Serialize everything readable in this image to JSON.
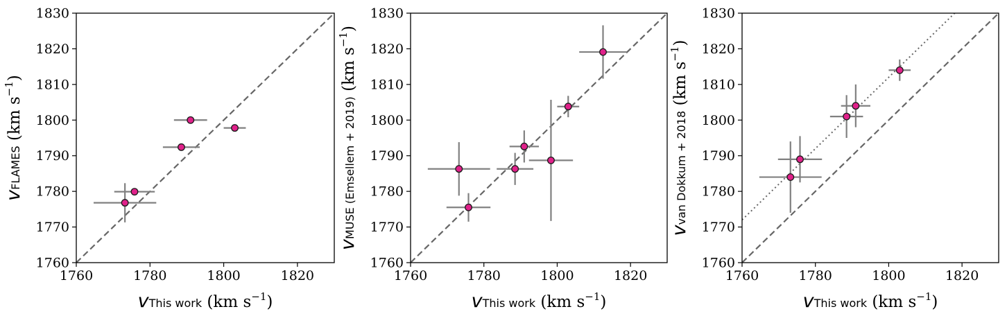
{
  "chart_data": [
    {
      "type": "scatter",
      "xlabel": {
        "symbol": "v",
        "subscript": "This work",
        "unit": "(km s",
        "exponent": "−1",
        "close": ")"
      },
      "ylabel": {
        "symbol": "v",
        "subscript": "FLAMES",
        "unit": "(km s",
        "exponent": "−1",
        "close": ")"
      },
      "xlim": [
        1760,
        1830
      ],
      "ylim": [
        1760,
        1830
      ],
      "xticks": [
        "1760",
        "1780",
        "1800",
        "1820"
      ],
      "yticks": [
        "1760",
        "1770",
        "1780",
        "1790",
        "1800",
        "1810",
        "1820",
        "1830"
      ],
      "reference_lines": [
        {
          "style": "dashed",
          "slope": 1,
          "intercept": 0
        }
      ],
      "series": [
        {
          "marker_color": "#e0218a",
          "points": [
            {
              "x": 1773.2,
              "y": 1776.8,
              "xerr": 8.5,
              "yerr": 5.5
            },
            {
              "x": 1775.8,
              "y": 1779.9,
              "xerr": 5.5,
              "yerr": 0
            },
            {
              "x": 1788.5,
              "y": 1792.4,
              "xerr": 5.0,
              "yerr": 0
            },
            {
              "x": 1791.0,
              "y": 1800.0,
              "xerr": 4.5,
              "yerr": 0
            },
            {
              "x": 1803.0,
              "y": 1797.8,
              "xerr": 3.0,
              "yerr": 0
            }
          ]
        }
      ]
    },
    {
      "type": "scatter",
      "xlabel": {
        "symbol": "v",
        "subscript": "This work",
        "unit": "(km s",
        "exponent": "−1",
        "close": ")"
      },
      "ylabel": {
        "symbol": "v",
        "subscript": "MUSE (Emsellem + 2019)",
        "unit": "(km s",
        "exponent": "−1",
        "close": ")"
      },
      "xlim": [
        1760,
        1830
      ],
      "ylim": [
        1760,
        1830
      ],
      "xticks": [
        "1760",
        "1780",
        "1800",
        "1820"
      ],
      "yticks": [
        "1760",
        "1770",
        "1780",
        "1790",
        "1800",
        "1810",
        "1820",
        "1830"
      ],
      "reference_lines": [
        {
          "style": "dashed",
          "slope": 1,
          "intercept": 0
        }
      ],
      "series": [
        {
          "marker_color": "#e0218a",
          "points": [
            {
              "x": 1773.2,
              "y": 1786.3,
              "xerr": 8.5,
              "yerr": 7.5
            },
            {
              "x": 1775.8,
              "y": 1775.5,
              "xerr": 6.0,
              "yerr": 4.0
            },
            {
              "x": 1788.5,
              "y": 1786.3,
              "xerr": 5.0,
              "yerr": 4.5
            },
            {
              "x": 1791.0,
              "y": 1792.6,
              "xerr": 4.0,
              "yerr": 4.5
            },
            {
              "x": 1798.3,
              "y": 1788.7,
              "xerr": 6.0,
              "yerr": 17.0
            },
            {
              "x": 1803.0,
              "y": 1803.8,
              "xerr": 3.0,
              "yerr": 3.0
            },
            {
              "x": 1812.5,
              "y": 1819.1,
              "xerr": 6.5,
              "yerr": 7.5
            }
          ]
        }
      ]
    },
    {
      "type": "scatter",
      "xlabel": {
        "symbol": "v",
        "subscript": "This work",
        "unit": "(km s",
        "exponent": "−1",
        "close": ")"
      },
      "ylabel": {
        "symbol": "v",
        "subscript": "van Dokkum + 2018",
        "unit": "(km s",
        "exponent": "−1",
        "close": ")"
      },
      "xlim": [
        1760,
        1830
      ],
      "ylim": [
        1760,
        1830
      ],
      "xticks": [
        "1760",
        "1780",
        "1800",
        "1820"
      ],
      "yticks": [
        "1760",
        "1770",
        "1780",
        "1790",
        "1800",
        "1810",
        "1820",
        "1830"
      ],
      "reference_lines": [
        {
          "style": "dashed",
          "slope": 1,
          "intercept": 0
        },
        {
          "style": "dotted",
          "slope": 1,
          "intercept": 12
        }
      ],
      "series": [
        {
          "marker_color": "#e0218a",
          "points": [
            {
              "x": 1773.2,
              "y": 1784.0,
              "xerr": 8.5,
              "yerr": 10.0
            },
            {
              "x": 1775.8,
              "y": 1789.0,
              "xerr": 6.0,
              "yerr": 6.5
            },
            {
              "x": 1788.5,
              "y": 1801.0,
              "xerr": 4.5,
              "yerr": 6.0
            },
            {
              "x": 1791.0,
              "y": 1804.0,
              "xerr": 4.0,
              "yerr": 6.0
            },
            {
              "x": 1803.0,
              "y": 1814.0,
              "xerr": 3.0,
              "yerr": 3.0
            }
          ]
        }
      ]
    }
  ],
  "style": {
    "errorbar_color": "#808080",
    "reference_line_color": "#666666",
    "marker_edge_color": "#1a1a1a"
  }
}
